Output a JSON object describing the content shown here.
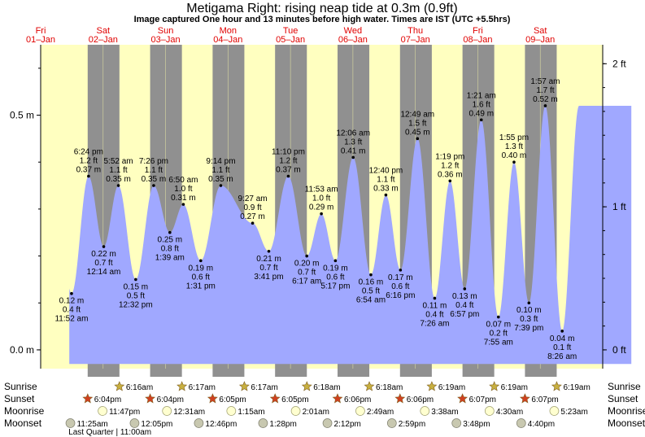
{
  "title": "Metigama Right: rising  neap tide at 0.3m (0.9ft)",
  "subtitle": "Image captured One hour and 13 minutes before high water. Times are IST (UTC +5.5hrs)",
  "colors": {
    "day": "#ffffc0",
    "night": "#909090",
    "water": "#a0a8ff",
    "day_label": "#e00000",
    "sunrise_star": "#c8b040",
    "sunset_star": "#d04020",
    "moonrise": "#ffffd0",
    "moonset": "#c8c8b0"
  },
  "days": [
    {
      "weekday": "Fri",
      "date": "01–Jan"
    },
    {
      "weekday": "Sat",
      "date": "02–Jan"
    },
    {
      "weekday": "Sun",
      "date": "03–Jan"
    },
    {
      "weekday": "Mon",
      "date": "04–Jan"
    },
    {
      "weekday": "Tue",
      "date": "05–Jan"
    },
    {
      "weekday": "Wed",
      "date": "06–Jan"
    },
    {
      "weekday": "Thu",
      "date": "07–Jan"
    },
    {
      "weekday": "Fri",
      "date": "08–Jan"
    },
    {
      "weekday": "Sat",
      "date": "09–Jan"
    }
  ],
  "chart_data": {
    "type": "area",
    "x_unit": "hours from 01-Jan 00:00 IST",
    "y_unit": "m",
    "ylim": [
      -0.04,
      0.65
    ],
    "left_ticks": [
      {
        "value": 0.0,
        "label": "0.0 m"
      },
      {
        "value": 0.5,
        "label": "0.5 m"
      }
    ],
    "right_ticks": [
      {
        "value": 0.0,
        "label": "0 ft"
      },
      {
        "value": 0.3048,
        "label": "1 ft"
      },
      {
        "value": 0.6096,
        "label": "2 ft"
      }
    ],
    "data_start": 11.0,
    "data_end": 227.0,
    "tides": [
      {
        "x": 11.87,
        "y": 0.12,
        "time": "11:52 am",
        "ft": "0.4 ft",
        "m": "0.12 m",
        "type": "low"
      },
      {
        "x": 18.4,
        "y": 0.37,
        "time": "6:24 pm",
        "ft": "1.2 ft",
        "m": "0.37 m",
        "type": "high"
      },
      {
        "x": 24.23,
        "y": 0.22,
        "time": "12:14 am",
        "ft": "0.7 ft",
        "m": "0.22 m",
        "type": "low"
      },
      {
        "x": 29.87,
        "y": 0.35,
        "time": "5:52 am",
        "ft": "1.1 ft",
        "m": "0.35 m",
        "type": "high"
      },
      {
        "x": 36.53,
        "y": 0.15,
        "time": "12:32 pm",
        "ft": "0.5 ft",
        "m": "0.15 m",
        "type": "low"
      },
      {
        "x": 43.43,
        "y": 0.35,
        "time": "7:26 pm",
        "ft": "1.1 ft",
        "m": "0.35 m",
        "type": "high"
      },
      {
        "x": 49.65,
        "y": 0.25,
        "time": "1:39 am",
        "ft": "0.8 ft",
        "m": "0.25 m",
        "type": "low"
      },
      {
        "x": 54.83,
        "y": 0.31,
        "time": "6:50 am",
        "ft": "1.0 ft",
        "m": "0.31 m",
        "type": "high"
      },
      {
        "x": 61.52,
        "y": 0.19,
        "time": "1:31 pm",
        "ft": "0.6 ft",
        "m": "0.19 m",
        "type": "low"
      },
      {
        "x": 69.23,
        "y": 0.35,
        "time": "9:14 pm",
        "ft": "1.1 ft",
        "m": "0.35 m",
        "type": "high"
      },
      {
        "x": 81.45,
        "y": 0.27,
        "time": "9:27 am",
        "ft": "0.9 ft",
        "m": "0.27 m",
        "type": "high"
      },
      {
        "x": 87.68,
        "y": 0.21,
        "time": "3:41 pm",
        "ft": "0.7 ft",
        "m": "0.21 m",
        "type": "low"
      },
      {
        "x": 95.17,
        "y": 0.37,
        "time": "11:10 pm",
        "ft": "1.2 ft",
        "m": "0.37 m",
        "type": "high"
      },
      {
        "x": 102.28,
        "y": 0.2,
        "time": "6:17 am",
        "ft": "0.7 ft",
        "m": "0.20 m",
        "type": "low"
      },
      {
        "x": 107.88,
        "y": 0.29,
        "time": "11:53 am",
        "ft": "1.0 ft",
        "m": "0.29 m",
        "type": "high"
      },
      {
        "x": 113.28,
        "y": 0.19,
        "time": "5:17 pm",
        "ft": "0.6 ft",
        "m": "0.19 m",
        "type": "low"
      },
      {
        "x": 120.1,
        "y": 0.41,
        "time": "12:06 am",
        "ft": "1.3 ft",
        "m": "0.41 m",
        "type": "high"
      },
      {
        "x": 126.9,
        "y": 0.16,
        "time": "6:54 am",
        "ft": "0.5 ft",
        "m": "0.16 m",
        "type": "low"
      },
      {
        "x": 132.67,
        "y": 0.33,
        "time": "12:40 pm",
        "ft": "1.1 ft",
        "m": "0.33 m",
        "type": "high"
      },
      {
        "x": 138.27,
        "y": 0.17,
        "time": "6:16 pm",
        "ft": "0.6 ft",
        "m": "0.17 m",
        "type": "low"
      },
      {
        "x": 144.82,
        "y": 0.45,
        "time": "12:49 am",
        "ft": "1.5 ft",
        "m": "0.45 m",
        "type": "high"
      },
      {
        "x": 151.43,
        "y": 0.11,
        "time": "7:26 am",
        "ft": "0.4 ft",
        "m": "0.11 m",
        "type": "low"
      },
      {
        "x": 157.32,
        "y": 0.36,
        "time": "1:19 pm",
        "ft": "1.2 ft",
        "m": "0.36 m",
        "type": "high"
      },
      {
        "x": 162.95,
        "y": 0.13,
        "time": "6:57 pm",
        "ft": "0.4 ft",
        "m": "0.13 m",
        "type": "low"
      },
      {
        "x": 169.35,
        "y": 0.49,
        "time": "1:21 am",
        "ft": "1.6 ft",
        "m": "0.49 m",
        "type": "high"
      },
      {
        "x": 175.92,
        "y": 0.07,
        "time": "7:55 am",
        "ft": "0.2 ft",
        "m": "0.07 m",
        "type": "low"
      },
      {
        "x": 181.92,
        "y": 0.4,
        "time": "1:55 pm",
        "ft": "1.3 ft",
        "m": "0.40 m",
        "type": "high"
      },
      {
        "x": 187.65,
        "y": 0.1,
        "time": "7:39 pm",
        "ft": "0.3 ft",
        "m": "0.10 m",
        "type": "low"
      },
      {
        "x": 193.95,
        "y": 0.52,
        "time": "1:57 am",
        "ft": "1.7 ft",
        "m": "0.52 m",
        "type": "high"
      },
      {
        "x": 200.43,
        "y": 0.04,
        "time": "8:26 am",
        "ft": "0.1 ft",
        "m": "0.04 m",
        "type": "low"
      }
    ],
    "nights": [
      {
        "set": 18.07,
        "rise": 30.27
      },
      {
        "set": 42.07,
        "rise": 54.28
      },
      {
        "set": 66.08,
        "rise": 78.28
      },
      {
        "set": 90.08,
        "rise": 102.3
      },
      {
        "set": 114.1,
        "rise": 126.3
      },
      {
        "set": 138.1,
        "rise": 150.32
      },
      {
        "set": 162.12,
        "rise": 174.32
      },
      {
        "set": 186.12,
        "rise": 198.32
      }
    ],
    "rows": [
      {
        "label": "Sunrise",
        "kind": "sunrise",
        "events": [
          {
            "x": 30.27,
            "text": "6:16am"
          },
          {
            "x": 54.28,
            "text": "6:17am"
          },
          {
            "x": 78.28,
            "text": "6:17am"
          },
          {
            "x": 102.3,
            "text": "6:18am"
          },
          {
            "x": 126.3,
            "text": "6:18am"
          },
          {
            "x": 150.32,
            "text": "6:19am"
          },
          {
            "x": 174.32,
            "text": "6:19am"
          },
          {
            "x": 198.32,
            "text": "6:19am"
          }
        ]
      },
      {
        "label": "Sunset",
        "kind": "sunset",
        "events": [
          {
            "x": 18.07,
            "text": "6:04pm"
          },
          {
            "x": 42.07,
            "text": "6:04pm"
          },
          {
            "x": 66.08,
            "text": "6:05pm"
          },
          {
            "x": 90.08,
            "text": "6:05pm"
          },
          {
            "x": 114.1,
            "text": "6:06pm"
          },
          {
            "x": 138.1,
            "text": "6:06pm"
          },
          {
            "x": 162.12,
            "text": "6:07pm"
          },
          {
            "x": 186.12,
            "text": "6:07pm"
          }
        ]
      },
      {
        "label": "Moonrise",
        "kind": "moonrise",
        "events": [
          {
            "x": 23.78,
            "text": "11:47pm"
          },
          {
            "x": 48.52,
            "text": "12:31am"
          },
          {
            "x": 73.25,
            "text": "1:15am"
          },
          {
            "x": 98.02,
            "text": "2:01am"
          },
          {
            "x": 122.82,
            "text": "2:49am"
          },
          {
            "x": 147.63,
            "text": "3:38am"
          },
          {
            "x": 172.5,
            "text": "4:30am"
          },
          {
            "x": 197.38,
            "text": "5:23am"
          }
        ]
      },
      {
        "label": "Moonset",
        "kind": "moonset",
        "events": [
          {
            "x": 11.42,
            "text": "11:25am"
          },
          {
            "x": 36.08,
            "text": "12:05pm"
          },
          {
            "x": 60.77,
            "text": "12:46pm"
          },
          {
            "x": 85.47,
            "text": "1:28pm"
          },
          {
            "x": 110.2,
            "text": "2:12pm"
          },
          {
            "x": 134.98,
            "text": "2:59pm"
          },
          {
            "x": 159.8,
            "text": "3:48pm"
          },
          {
            "x": 184.67,
            "text": "4:40pm"
          }
        ]
      }
    ],
    "moon_phase": {
      "x": 11.0,
      "text": "Last Quarter | 11:00am"
    }
  }
}
